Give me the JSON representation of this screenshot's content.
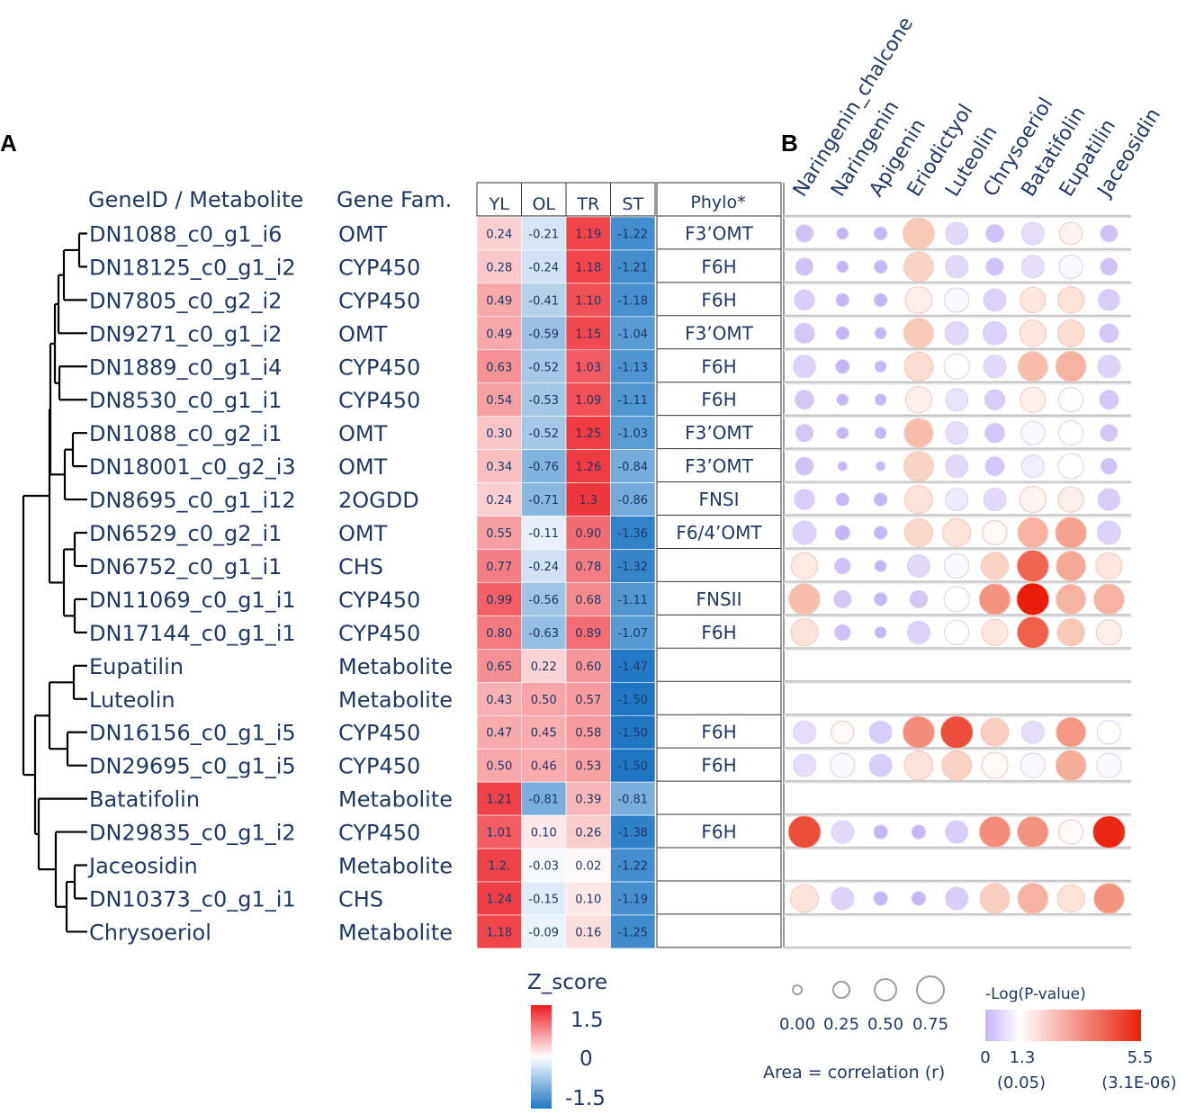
{
  "panels": {
    "a": "A",
    "b": "B"
  },
  "headers": {
    "gene_id": "GeneID / Metabolite",
    "gene_fam": "Gene Fam.",
    "phylo": "Phylo*"
  },
  "chart_data": [
    {
      "type": "heatmap",
      "name": "Z-score expression / abundance",
      "columns": [
        "YL",
        "OL",
        "TR",
        "ST"
      ],
      "rows": [
        {
          "id": "DN1088_c0_g1_i6",
          "family": "OMT",
          "phylo": "F3'OMT",
          "labels": [
            "0.24",
            "-0.21",
            "1.19",
            "-1.22"
          ],
          "values": [
            0.24,
            -0.21,
            1.19,
            -1.22
          ]
        },
        {
          "id": "DN18125_c0_g1_i2",
          "family": "CYP450",
          "phylo": "F6H",
          "labels": [
            "0.28",
            "-0.24",
            "1.18",
            "-1.21"
          ],
          "values": [
            0.28,
            -0.24,
            1.18,
            -1.21
          ]
        },
        {
          "id": "DN7805_c0_g2_i2",
          "family": "CYP450",
          "phylo": "F6H",
          "labels": [
            "0.49",
            "-0.41",
            "1.10",
            "-1.18"
          ],
          "values": [
            0.49,
            -0.41,
            1.1,
            -1.18
          ]
        },
        {
          "id": "DN9271_c0_g1_i2",
          "family": "OMT",
          "phylo": "F3'OMT",
          "labels": [
            "0.49",
            "-0.59",
            "1.15",
            "-1.04"
          ],
          "values": [
            0.49,
            -0.59,
            1.15,
            -1.04
          ]
        },
        {
          "id": "DN1889_c0_g1_i4",
          "family": "CYP450",
          "phylo": "F6H",
          "labels": [
            "0.63",
            "-0.52",
            "1.03",
            "-1.13"
          ],
          "values": [
            0.63,
            -0.52,
            1.03,
            -1.13
          ]
        },
        {
          "id": "DN8530_c0_g1_i1",
          "family": "CYP450",
          "phylo": "F6H",
          "labels": [
            "0.54",
            "-0.53",
            "1.09",
            "-1.11"
          ],
          "values": [
            0.54,
            -0.53,
            1.09,
            -1.11
          ]
        },
        {
          "id": "DN1088_c0_g2_i1",
          "family": "OMT",
          "phylo": "F3'OMT",
          "labels": [
            "0.30",
            "-0.52",
            "1.25",
            "-1.03"
          ],
          "values": [
            0.3,
            -0.52,
            1.25,
            -1.03
          ]
        },
        {
          "id": "DN18001_c0_g2_i3",
          "family": "OMT",
          "phylo": "F3'OMT",
          "labels": [
            "0.34",
            "-0.76",
            "1.26",
            "-0.84"
          ],
          "values": [
            0.34,
            -0.76,
            1.26,
            -0.84
          ]
        },
        {
          "id": "DN8695_c0_g1_i12",
          "family": "2OGDD",
          "phylo": "FNSI",
          "labels": [
            "0.24",
            "-0.71",
            "1.3",
            "-0.86"
          ],
          "values": [
            0.24,
            -0.71,
            1.3,
            -0.86
          ]
        },
        {
          "id": "DN6529_c0_g2_i1",
          "family": "OMT",
          "phylo": "F6/4'OMT",
          "labels": [
            "0.55",
            "-0.11",
            "0.90",
            "-1.36"
          ],
          "values": [
            0.55,
            -0.11,
            0.9,
            -1.36
          ]
        },
        {
          "id": "DN6752_c0_g1_i1",
          "family": "CHS",
          "phylo": "",
          "labels": [
            "0.77",
            "-0.24",
            "0.78",
            "-1.32"
          ],
          "values": [
            0.77,
            -0.24,
            0.78,
            -1.32
          ]
        },
        {
          "id": "DN11069_c0_g1_i1",
          "family": "CYP450",
          "phylo": "FNSII",
          "labels": [
            "0.99",
            "-0.56",
            "0.68",
            "-1.11"
          ],
          "values": [
            0.99,
            -0.56,
            0.68,
            -1.11
          ]
        },
        {
          "id": "DN17144_c0_g1_i1",
          "family": "CYP450",
          "phylo": "F6H",
          "labels": [
            "0.80",
            "-0.63",
            "0.89",
            "-1.07"
          ],
          "values": [
            0.8,
            -0.63,
            0.89,
            -1.07
          ]
        },
        {
          "id": "Eupatilin",
          "family": "Metabolite",
          "phylo": "",
          "labels": [
            "0.65",
            "0.22",
            "0.60",
            "-1.47"
          ],
          "values": [
            0.65,
            0.22,
            0.6,
            -1.47
          ]
        },
        {
          "id": "Luteolin",
          "family": "Metabolite",
          "phylo": "",
          "labels": [
            "0.43",
            "0.50",
            "0.57",
            "-1.50"
          ],
          "values": [
            0.43,
            0.5,
            0.57,
            -1.5
          ]
        },
        {
          "id": "DN16156_c0_g1_i5",
          "family": "CYP450",
          "phylo": "F6H",
          "labels": [
            "0.47",
            "0.45",
            "0.58",
            "-1.50"
          ],
          "values": [
            0.47,
            0.45,
            0.58,
            -1.5
          ]
        },
        {
          "id": "DN29695_c0_g1_i5",
          "family": "CYP450",
          "phylo": "F6H",
          "labels": [
            "0.50",
            "0.46",
            "0.53",
            "-1.50"
          ],
          "values": [
            0.5,
            0.46,
            0.53,
            -1.5
          ]
        },
        {
          "id": "Batatifolin",
          "family": "Metabolite",
          "phylo": "",
          "labels": [
            "1.21",
            "-0.81",
            "0.39",
            "-0.81"
          ],
          "values": [
            1.21,
            -0.81,
            0.39,
            -0.81
          ]
        },
        {
          "id": "DN29835_c0_g1_i2",
          "family": "CYP450",
          "phylo": "F6H",
          "labels": [
            "1.01",
            "0.10",
            "0.26",
            "-1.38"
          ],
          "values": [
            1.01,
            0.1,
            0.26,
            -1.38
          ]
        },
        {
          "id": "Jaceosidin",
          "family": "Metabolite",
          "phylo": "",
          "labels": [
            "1.2.",
            "-0.03",
            "0.02",
            "-1.22"
          ],
          "values": [
            1.2,
            -0.03,
            0.02,
            -1.22
          ]
        },
        {
          "id": "DN10373_c0_g1_i1",
          "family": "CHS",
          "phylo": "",
          "labels": [
            "1.24",
            "-0.15",
            "0.10",
            "-1.19"
          ],
          "values": [
            1.24,
            -0.15,
            0.1,
            -1.19
          ]
        },
        {
          "id": "Chrysoeriol",
          "family": "Metabolite",
          "phylo": "",
          "labels": [
            "1.18",
            "-0.09",
            "0.16",
            "-1.25"
          ],
          "values": [
            1.18,
            -0.09,
            0.16,
            -1.25
          ]
        }
      ],
      "legend": {
        "title": "Z_score",
        "ticks": [
          "1.5",
          "0",
          "-1.5"
        ],
        "range": [
          -1.5,
          1.5
        ]
      }
    },
    {
      "type": "scatter",
      "name": "Gene-metabolite correlation bubble plot",
      "columns": [
        "Naringenin_chalcone",
        "Naringenin",
        "Apigenin",
        "Eriodictyol",
        "Luteolin",
        "Chrysoeriol",
        "Batatifolin",
        "Eupatilin",
        "Jaceosidin"
      ],
      "encoding": {
        "area": "correlation (r)",
        "color": "-Log(P-value)"
      },
      "row_values": [
        {
          "r": [
            0.2,
            0.05,
            0.08,
            0.9,
            0.4,
            0.22,
            0.4,
            0.4,
            0.18
          ],
          "p": [
            0.2,
            0.0,
            0.0,
            2.4,
            0.6,
            0.2,
            0.7,
            1.5,
            0.2
          ]
        },
        {
          "r": [
            0.2,
            0.05,
            0.08,
            0.8,
            0.4,
            0.2,
            0.4,
            0.45,
            0.18
          ],
          "p": [
            0.2,
            0.0,
            0.0,
            2.2,
            0.6,
            0.2,
            0.7,
            1.2,
            0.2
          ]
        },
        {
          "r": [
            0.3,
            0.08,
            0.08,
            0.62,
            0.5,
            0.4,
            0.55,
            0.6,
            0.35
          ],
          "p": [
            0.4,
            0.0,
            0.0,
            1.6,
            1.2,
            0.5,
            1.8,
            1.9,
            0.4
          ]
        },
        {
          "r": [
            0.3,
            0.08,
            0.05,
            0.8,
            0.45,
            0.45,
            0.6,
            0.62,
            0.25
          ],
          "p": [
            0.3,
            0.0,
            0.0,
            2.4,
            0.6,
            0.5,
            1.8,
            2.0,
            0.3
          ]
        },
        {
          "r": [
            0.4,
            0.1,
            0.05,
            0.75,
            0.55,
            0.4,
            0.8,
            0.85,
            0.4
          ],
          "p": [
            0.5,
            0.0,
            0.0,
            2.0,
            1.3,
            0.6,
            2.6,
            2.8,
            0.5
          ]
        },
        {
          "r": [
            0.25,
            0.05,
            0.05,
            0.6,
            0.4,
            0.3,
            0.55,
            0.5,
            0.25
          ],
          "p": [
            0.3,
            0.0,
            0.0,
            1.6,
            0.8,
            0.4,
            1.6,
            1.3,
            0.3
          ]
        },
        {
          "r": [
            0.2,
            0.05,
            0.05,
            0.75,
            0.4,
            0.28,
            0.45,
            0.5,
            0.18
          ],
          "p": [
            0.3,
            0.0,
            0.0,
            2.6,
            0.7,
            0.3,
            1.2,
            1.3,
            0.3
          ]
        },
        {
          "r": [
            0.22,
            0.02,
            0.02,
            0.8,
            0.4,
            0.25,
            0.4,
            0.55,
            0.15
          ],
          "p": [
            0.2,
            0.0,
            0.0,
            2.2,
            0.6,
            0.3,
            1.0,
            1.3,
            0.2
          ]
        },
        {
          "r": [
            0.3,
            0.08,
            0.08,
            0.7,
            0.4,
            0.4,
            0.6,
            0.55,
            0.38
          ],
          "p": [
            0.4,
            0.0,
            0.0,
            1.9,
            0.9,
            0.6,
            1.5,
            1.6,
            0.4
          ]
        },
        {
          "r": [
            0.45,
            0.12,
            0.08,
            0.7,
            0.7,
            0.5,
            0.85,
            0.9,
            0.45
          ],
          "p": [
            0.5,
            0.0,
            0.0,
            2.1,
            1.9,
            1.4,
            2.8,
            3.1,
            0.5
          ]
        },
        {
          "r": [
            0.6,
            0.15,
            0.05,
            0.4,
            0.5,
            0.65,
            0.95,
            0.8,
            0.6
          ],
          "p": [
            1.7,
            0.2,
            0.0,
            0.6,
            1.2,
            2.2,
            4.2,
            3.0,
            1.8
          ]
        },
        {
          "r": [
            0.9,
            0.2,
            0.08,
            0.2,
            0.55,
            0.9,
            1.0,
            0.8,
            0.85
          ],
          "p": [
            2.6,
            0.3,
            0.0,
            0.3,
            1.3,
            3.4,
            5.5,
            2.8,
            2.8
          ]
        },
        {
          "r": [
            0.65,
            0.15,
            0.05,
            0.4,
            0.5,
            0.6,
            0.95,
            0.65,
            0.55
          ],
          "p": [
            1.9,
            0.2,
            0.0,
            0.5,
            1.3,
            1.8,
            4.3,
            2.4,
            1.6
          ]
        },
        null,
        null,
        {
          "r": [
            0.4,
            0.4,
            0.4,
            0.95,
            1.0,
            0.7,
            0.4,
            0.8,
            0.45
          ],
          "p": [
            0.7,
            1.4,
            0.4,
            3.5,
            4.6,
            2.3,
            0.7,
            3.3,
            1.3
          ]
        },
        {
          "r": [
            0.4,
            0.5,
            0.4,
            0.75,
            0.8,
            0.6,
            0.5,
            0.85,
            0.5
          ],
          "p": [
            0.7,
            1.2,
            0.4,
            1.9,
            2.2,
            1.4,
            1.2,
            2.9,
            1.2
          ]
        },
        null,
        {
          "r": [
            1.0,
            0.4,
            0.1,
            0.1,
            0.4,
            0.9,
            0.9,
            0.5,
            1.0
          ],
          "p": [
            4.6,
            0.6,
            0.0,
            0.0,
            0.4,
            3.5,
            3.4,
            1.4,
            5.3
          ]
        },
        null,
        {
          "r": [
            0.7,
            0.4,
            0.1,
            0.1,
            0.4,
            0.8,
            0.85,
            0.65,
            0.85
          ],
          "p": [
            1.9,
            0.5,
            0.0,
            0.0,
            0.4,
            2.3,
            2.8,
            1.9,
            3.4
          ]
        },
        null
      ],
      "size_legend": {
        "labels": [
          "0.00",
          "0.25",
          "0.50",
          "0.75"
        ],
        "caption": "Area = correlation (r)"
      },
      "color_legend": {
        "title": "-Log(P-value)",
        "min_label": "0",
        "mid_label": "1.3",
        "max_label": "5.5",
        "mid_p": "(0.05)",
        "max_p": "(3.1E-06)",
        "range": [
          0,
          5.5
        ]
      }
    }
  ]
}
